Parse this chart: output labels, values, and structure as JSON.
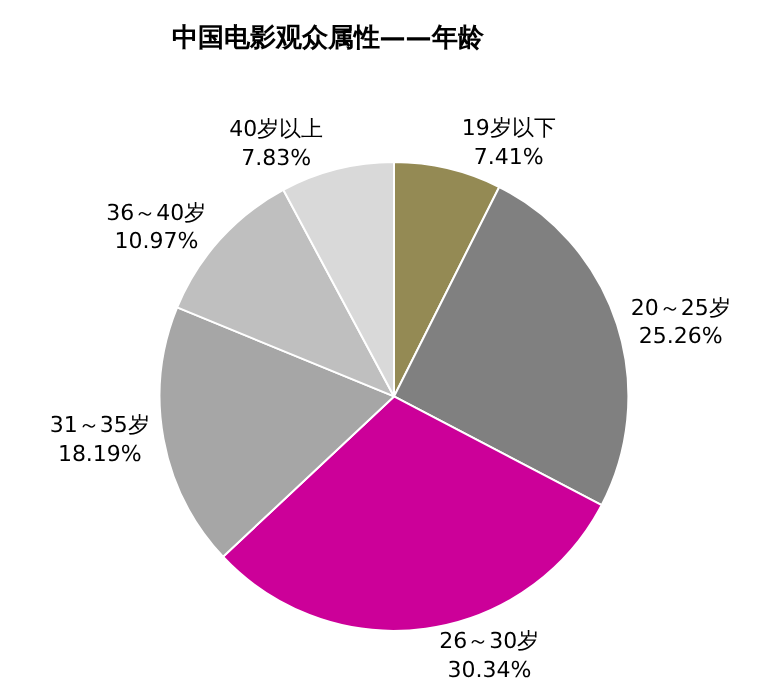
{
  "chart_data": {
    "type": "pie",
    "title": "中国电影观众属性——年龄",
    "categories": [
      "19岁以下",
      "20～25岁",
      "26～30岁",
      "31～35岁",
      "36～40岁",
      "40岁以上"
    ],
    "values": [
      7.41,
      25.26,
      30.34,
      18.19,
      10.97,
      7.83
    ],
    "value_labels": [
      "7.41%",
      "25.26%",
      "30.34%",
      "18.19%",
      "10.97%",
      "7.83%"
    ],
    "colors": [
      "#948a54",
      "#808080",
      "#cc0099",
      "#a6a6a6",
      "#bfbfbf",
      "#d9d9d9"
    ],
    "legend": false
  }
}
